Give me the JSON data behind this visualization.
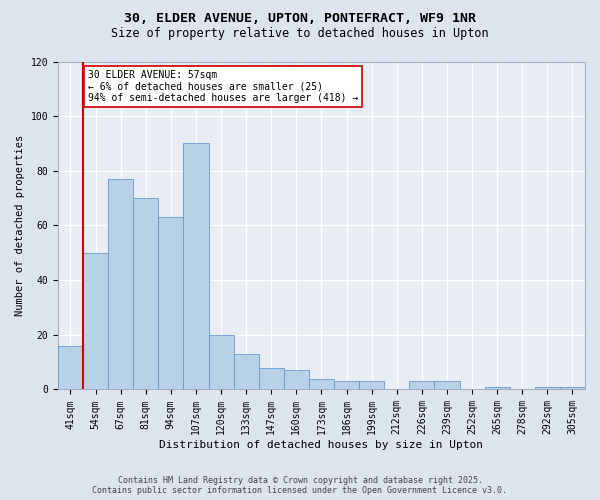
{
  "title1": "30, ELDER AVENUE, UPTON, PONTEFRACT, WF9 1NR",
  "title2": "Size of property relative to detached houses in Upton",
  "xlabel": "Distribution of detached houses by size in Upton",
  "ylabel": "Number of detached properties",
  "categories": [
    "41sqm",
    "54sqm",
    "67sqm",
    "81sqm",
    "94sqm",
    "107sqm",
    "120sqm",
    "133sqm",
    "147sqm",
    "160sqm",
    "173sqm",
    "186sqm",
    "199sqm",
    "212sqm",
    "226sqm",
    "239sqm",
    "252sqm",
    "265sqm",
    "278sqm",
    "292sqm",
    "305sqm"
  ],
  "values": [
    16,
    50,
    77,
    70,
    63,
    90,
    20,
    13,
    8,
    7,
    4,
    3,
    3,
    0,
    3,
    3,
    0,
    1,
    0,
    1,
    1
  ],
  "bar_color": "#b8d0e8",
  "bar_edge_color": "#6699cc",
  "highlight_bar_index": 1,
  "highlight_color": "#cc0000",
  "annotation_text": "30 ELDER AVENUE: 57sqm\n← 6% of detached houses are smaller (25)\n94% of semi-detached houses are larger (418) →",
  "annotation_box_color": "#ffffff",
  "annotation_box_edge": "#cc0000",
  "ylim": [
    0,
    120
  ],
  "yticks": [
    0,
    20,
    40,
    60,
    80,
    100,
    120
  ],
  "bg_color": "#dde4ed",
  "plot_bg_color": "#e8edf4",
  "footer": "Contains HM Land Registry data © Crown copyright and database right 2025.\nContains public sector information licensed under the Open Government Licence v3.0.",
  "title1_fontsize": 9.5,
  "title2_fontsize": 8.5,
  "tick_fontsize": 7,
  "xlabel_fontsize": 8,
  "ylabel_fontsize": 7.5,
  "annot_fontsize": 7,
  "footer_fontsize": 6
}
